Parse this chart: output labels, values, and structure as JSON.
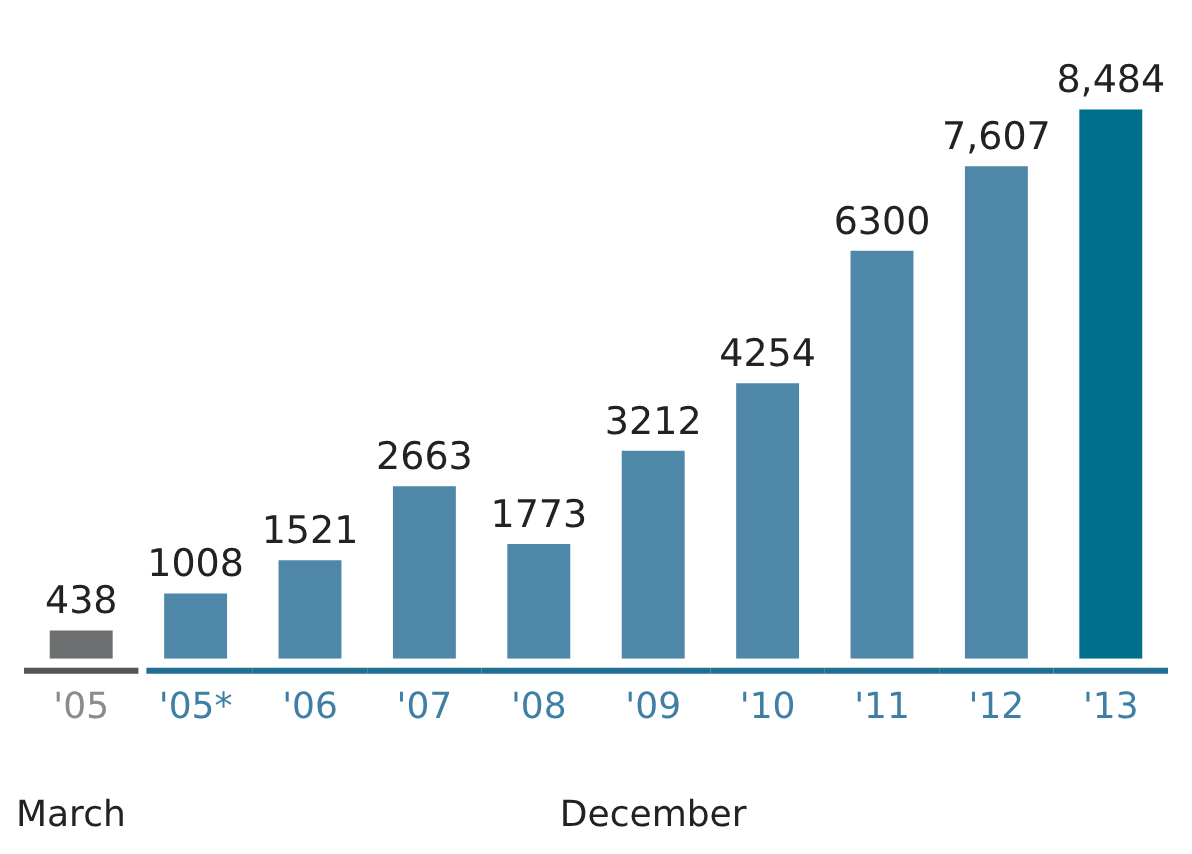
{
  "chart_data": {
    "type": "bar",
    "categories": [
      "'05",
      "'05*",
      "'06",
      "'07",
      "'08",
      "'09",
      "'10",
      "'11",
      "'12",
      "'13"
    ],
    "values": [
      438,
      1008,
      1521,
      2663,
      1773,
      3212,
      4254,
      6300,
      7607,
      8484
    ],
    "colors": [
      "#6d6e70",
      "#4f87a8",
      "#4f87a8",
      "#4f87a8",
      "#4f87a8",
      "#4f87a8",
      "#4f87a8",
      "#4f87a8",
      "#4f87a8",
      "#006f8c"
    ],
    "value_labels": [
      "438",
      "1008",
      "1521",
      "2663",
      "1773",
      "3212",
      "4254",
      "6300",
      "7,607",
      "8,484"
    ],
    "annotations": [
      "March",
      "December"
    ],
    "legend": false,
    "grid": false
  }
}
